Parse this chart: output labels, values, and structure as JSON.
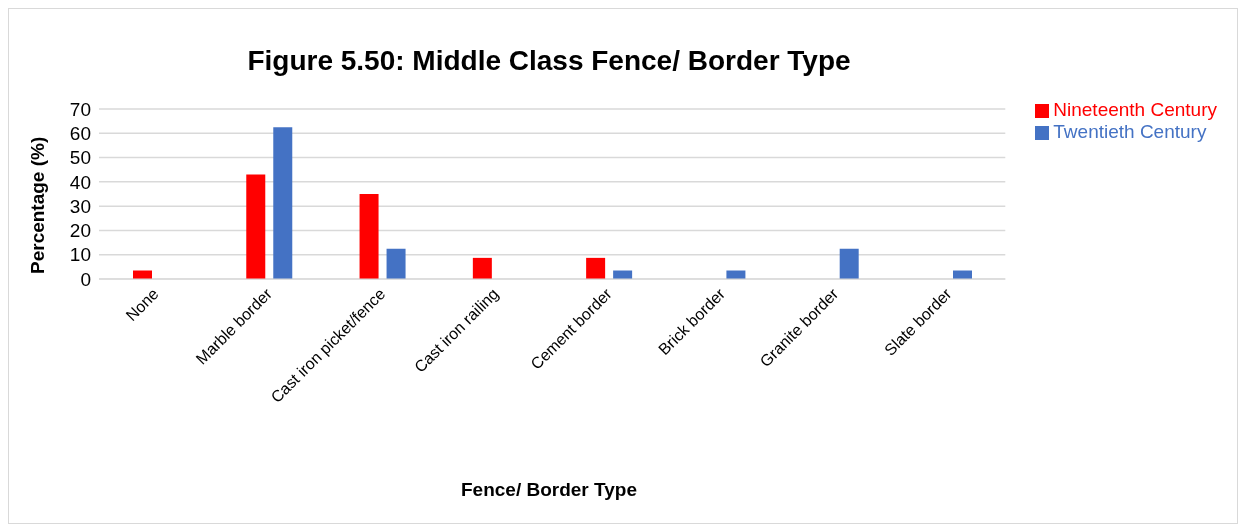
{
  "chart_data": {
    "type": "bar",
    "title": "Figure 5.50: Middle Class Fence/ Border Type",
    "xlabel": "Fence/ Border Type",
    "ylabel": "Percentage (%)",
    "categories": [
      "None",
      "Marble border",
      "Cast iron picket/fence",
      "Cast iron railing",
      "Cement border",
      "Brick border",
      "Granite border",
      "Slate border"
    ],
    "series": [
      {
        "name": "Nineteenth Century",
        "color": "#ff0000",
        "values": [
          3.5,
          43,
          35,
          8.7,
          8.7,
          null,
          null,
          null
        ]
      },
      {
        "name": "Twentieth Century",
        "color": "#4472c4",
        "values": [
          null,
          62.5,
          12.5,
          null,
          3.5,
          3.5,
          12.5,
          3.5
        ]
      }
    ],
    "ylim": [
      0,
      70
    ],
    "yticks": [
      0,
      10,
      20,
      30,
      40,
      50,
      60,
      70
    ],
    "grid": "y",
    "legend": "right"
  }
}
